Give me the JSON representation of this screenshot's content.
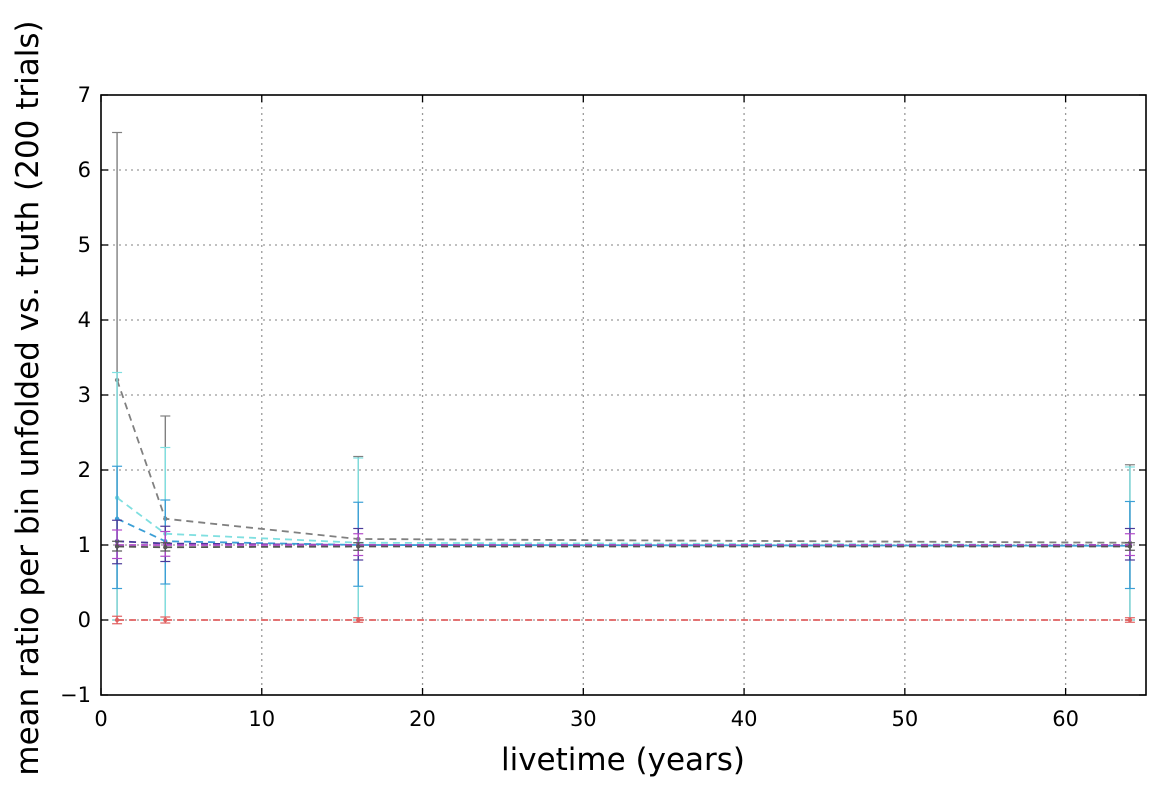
{
  "chart_data": {
    "type": "line",
    "xlabel": "livetime (years)",
    "ylabel": "mean ratio per bin unfolded vs. truth (200 trials)",
    "xlim": [
      0,
      65
    ],
    "ylim": [
      -1,
      7
    ],
    "xticks": [
      0,
      10,
      20,
      30,
      40,
      50,
      60
    ],
    "xtick_labels": [
      "0",
      "10",
      "20",
      "30",
      "40",
      "50",
      "60"
    ],
    "yticks": [
      -1,
      0,
      1,
      2,
      3,
      4,
      5,
      6,
      7
    ],
    "ytick_labels": [
      "−1",
      "0",
      "1",
      "2",
      "3",
      "4",
      "5",
      "6",
      "7"
    ],
    "grid": true,
    "x": [
      1,
      4,
      16,
      64
    ],
    "series": [
      {
        "color": "#808080",
        "dash": "dashed",
        "values": [
          3.2,
          1.35,
          1.08,
          1.03
        ],
        "err_low": [
          0.0,
          0.0,
          0.0,
          0.0
        ],
        "err_high": [
          6.5,
          2.72,
          2.18,
          2.07
        ]
      },
      {
        "color": "#7fdfe0",
        "dash": "dashed",
        "values": [
          1.63,
          1.15,
          1.03,
          1.0
        ],
        "err_low": [
          0.0,
          0.0,
          0.0,
          0.0
        ],
        "err_high": [
          3.3,
          2.3,
          2.16,
          2.04
        ]
      },
      {
        "color": "#3b9fd6",
        "dash": "dashed",
        "values": [
          1.35,
          1.05,
          1.0,
          0.99
        ],
        "err_low": [
          0.42,
          0.48,
          0.45,
          0.42
        ],
        "err_high": [
          2.05,
          1.6,
          1.57,
          1.58
        ]
      },
      {
        "color": "#4b3a9a",
        "dash": "dashed",
        "values": [
          1.05,
          1.02,
          1.0,
          1.0
        ],
        "err_low": [
          0.75,
          0.78,
          0.8,
          0.8
        ],
        "err_high": [
          1.33,
          1.25,
          1.22,
          1.22
        ]
      },
      {
        "color": "#b04ac8",
        "dash": "dashed",
        "values": [
          1.0,
          1.0,
          1.0,
          1.0
        ],
        "err_low": [
          0.82,
          0.85,
          0.86,
          0.86
        ],
        "err_high": [
          1.2,
          1.18,
          1.15,
          1.15
        ]
      },
      {
        "color": "#555555",
        "dash": "dashed",
        "values": [
          0.98,
          0.97,
          0.98,
          0.98
        ],
        "err_low": [
          0.92,
          0.92,
          0.93,
          0.93
        ],
        "err_high": [
          1.05,
          1.03,
          1.03,
          1.03
        ]
      },
      {
        "color": "#e06060",
        "dash": "dashed",
        "values": [
          0.0,
          0.0,
          0.0,
          0.0
        ],
        "err_low": [
          -0.05,
          -0.04,
          -0.03,
          -0.03
        ],
        "err_high": [
          0.05,
          0.04,
          0.03,
          0.03
        ]
      }
    ]
  }
}
